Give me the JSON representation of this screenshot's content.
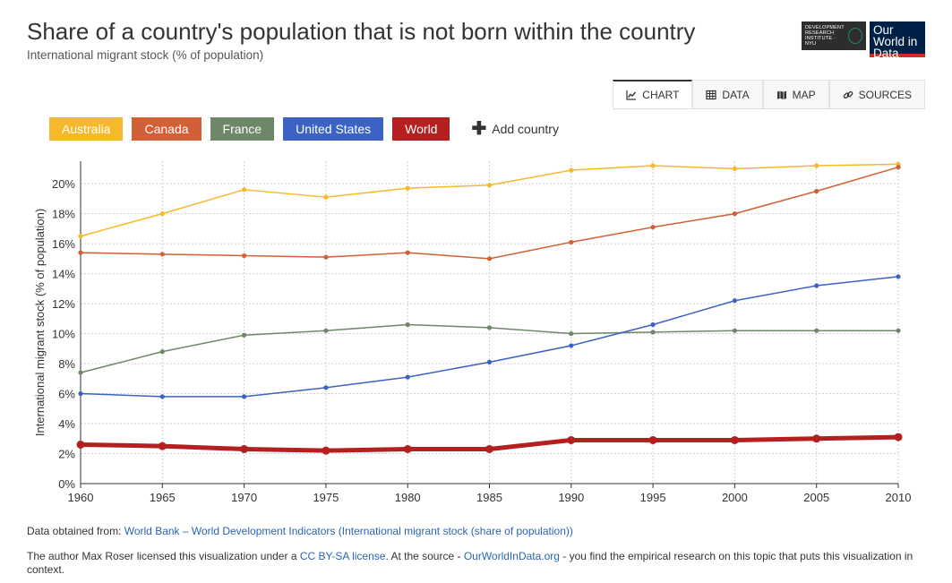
{
  "header": {
    "title": "Share of a country's population that is not born within the country",
    "subtitle": "International migrant stock (% of population)",
    "logo_dri": "DEVELOPMENT RESEARCH INSTITUTE · NYU",
    "logo_owid": "Our World in Data"
  },
  "tabs": [
    {
      "label": "CHART",
      "icon": "line-chart-icon",
      "active": true
    },
    {
      "label": "DATA",
      "icon": "table-icon",
      "active": false
    },
    {
      "label": "MAP",
      "icon": "map-icon",
      "active": false
    },
    {
      "label": "SOURCES",
      "icon": "link-icon",
      "active": false
    }
  ],
  "legend": {
    "add_country": "Add country"
  },
  "chart_data": {
    "type": "line",
    "title": "Share of a country's population that is not born within the country",
    "subtitle": "International migrant stock (% of population)",
    "ylabel": "International migrant stock (% of population)",
    "xlabel": "",
    "x": [
      1960,
      1965,
      1970,
      1975,
      1980,
      1985,
      1990,
      1995,
      2000,
      2005,
      2010
    ],
    "xlim": [
      1960,
      2010
    ],
    "ylim": [
      0,
      21.5
    ],
    "yticks": [
      0,
      2,
      4,
      6,
      8,
      10,
      12,
      14,
      16,
      18,
      20
    ],
    "ytick_labels": [
      "0%",
      "2%",
      "4%",
      "6%",
      "8%",
      "10%",
      "12%",
      "14%",
      "16%",
      "18%",
      "20%"
    ],
    "xtick_labels": [
      "1960",
      "1965",
      "1970",
      "1975",
      "1980",
      "1985",
      "1990",
      "1995",
      "2000",
      "2005",
      "2010"
    ],
    "grid": true,
    "legend_position": "top-left",
    "series": [
      {
        "name": "Australia",
        "color": "#f6b92b",
        "values": [
          16.5,
          18.0,
          19.6,
          19.1,
          19.7,
          19.9,
          20.9,
          21.2,
          21.0,
          21.2,
          21.3
        ]
      },
      {
        "name": "Canada",
        "color": "#d25f36",
        "values": [
          15.4,
          15.3,
          15.2,
          15.1,
          15.4,
          15.0,
          16.1,
          17.1,
          18.0,
          19.5,
          21.1
        ]
      },
      {
        "name": "France",
        "color": "#6f8769",
        "values": [
          7.4,
          8.8,
          9.9,
          10.2,
          10.6,
          10.4,
          10.0,
          10.1,
          10.2,
          10.2,
          10.2
        ]
      },
      {
        "name": "United States",
        "color": "#3b62c4",
        "values": [
          6.0,
          5.8,
          5.8,
          6.4,
          7.1,
          8.1,
          9.2,
          10.6,
          12.2,
          13.2,
          13.8
        ]
      },
      {
        "name": "World",
        "color": "#b41f1f",
        "values": [
          2.6,
          2.5,
          2.3,
          2.2,
          2.3,
          2.3,
          2.9,
          2.9,
          2.9,
          3.0,
          3.1
        ],
        "bold": true
      }
    ]
  },
  "footer": {
    "source_prefix": "Data obtained from: ",
    "source_link": "World Bank – World Development Indicators (International migrant stock (share of population))",
    "license_prefix": "The author Max Roser licensed this visualization under a ",
    "license_link": "CC BY-SA license",
    "license_mid": ". At the source - ",
    "site_link": "OurWorldInData.org",
    "license_suffix": " - you find the empirical research on this topic that puts this visualization in context."
  }
}
